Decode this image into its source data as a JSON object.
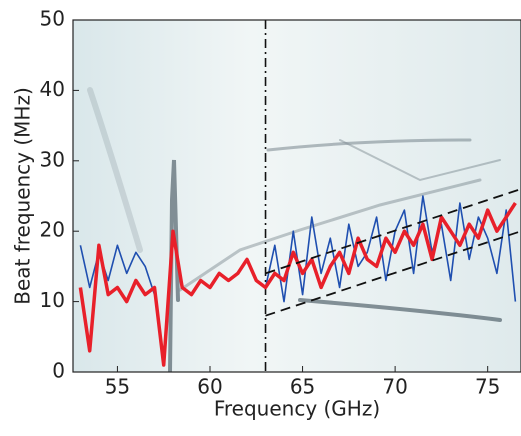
{
  "chart_data": {
    "type": "line",
    "xlabel": "Frequency (GHz)",
    "ylabel": "Beat frequency (MHz)",
    "xlim": [
      52.6,
      76.8
    ],
    "ylim": [
      0,
      50
    ],
    "xticks": [
      55,
      60,
      65,
      70,
      75
    ],
    "yticks": [
      0,
      10,
      20,
      30,
      40,
      50
    ],
    "vline": {
      "x": 63,
      "color": "#111111"
    },
    "x": [
      53,
      53.5,
      54,
      54.5,
      55,
      55.5,
      56,
      56.5,
      57,
      57.5,
      58,
      58.5,
      59,
      59.5,
      60,
      60.5,
      61,
      61.5,
      62,
      62.5,
      63,
      63.5,
      64,
      64.5,
      65,
      65.5,
      66,
      66.5,
      67,
      67.5,
      68,
      68.5,
      69,
      69.5,
      70,
      70.5,
      71,
      71.5,
      72,
      72.5,
      73,
      73.5,
      74,
      74.5,
      75,
      75.5,
      76,
      76.5
    ],
    "series": [
      {
        "color": "#1f4fb0",
        "width": 1.6,
        "dash": "solid",
        "values": [
          18,
          12,
          17,
          13,
          18,
          14,
          17,
          15,
          11,
          null,
          null,
          null,
          null,
          null,
          null,
          null,
          null,
          null,
          null,
          null,
          12,
          18,
          10,
          20,
          11,
          22,
          14,
          19,
          12,
          21,
          15,
          17,
          22,
          13,
          20,
          23,
          14,
          25,
          17,
          21,
          13,
          24,
          16,
          22,
          19,
          14,
          23,
          10
        ]
      },
      {
        "color": "#e8202a",
        "width": 3.5,
        "dash": "solid",
        "values": [
          12,
          3,
          18,
          11,
          12,
          10,
          13,
          11,
          12,
          1,
          20,
          12,
          11,
          13,
          12,
          14,
          13,
          14,
          16,
          13,
          12,
          14,
          13,
          17,
          14,
          16,
          12,
          15,
          17,
          14,
          19,
          16,
          15,
          19,
          17,
          20,
          18,
          21,
          16,
          22,
          20,
          18,
          21,
          19,
          23,
          20,
          22,
          24
        ]
      },
      {
        "color": "#111111",
        "width": 1.8,
        "dash": "dashed",
        "x": [
          63,
          76.8
        ],
        "values": [
          14,
          26
        ]
      },
      {
        "color": "#111111",
        "width": 1.8,
        "dash": "dashed",
        "x": [
          63,
          76.8
        ],
        "values": [
          8,
          20
        ]
      }
    ]
  }
}
